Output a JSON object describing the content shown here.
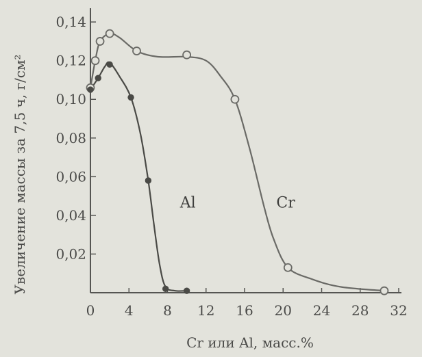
{
  "chart_data": {
    "type": "line",
    "title": "",
    "xlabel": "Cr или Al, масс.%",
    "ylabel": "Увеличение массы за 7,5 ч, г/см²",
    "xlim": [
      0,
      32
    ],
    "ylim": [
      0,
      0.145
    ],
    "x_ticks": [
      0,
      4,
      8,
      12,
      16,
      20,
      24,
      28,
      32
    ],
    "y_ticks": [
      0.02,
      0.04,
      0.06,
      0.08,
      0.1,
      0.12,
      0.14
    ],
    "x_tick_labels": [
      "0",
      "4",
      "8",
      "12",
      "16",
      "20",
      "24",
      "28",
      "32"
    ],
    "y_tick_labels": [
      "0,02",
      "0,04",
      "0,06",
      "0,08",
      "0,10",
      "0,12",
      "0,14"
    ],
    "grid": false,
    "legend": "none",
    "series": [
      {
        "name": "Cr",
        "marker": "open-circle",
        "color": "#6a6a66",
        "points": [
          {
            "x": 0.0,
            "y": 0.106
          },
          {
            "x": 0.5,
            "y": 0.12
          },
          {
            "x": 1.0,
            "y": 0.13
          },
          {
            "x": 2.0,
            "y": 0.134
          },
          {
            "x": 4.8,
            "y": 0.125
          },
          {
            "x": 10.0,
            "y": 0.123
          },
          {
            "x": 15.0,
            "y": 0.1
          },
          {
            "x": 20.5,
            "y": 0.013
          },
          {
            "x": 30.5,
            "y": 0.001
          }
        ],
        "curve": [
          [
            0.0,
            0.106
          ],
          [
            0.5,
            0.12
          ],
          [
            1.0,
            0.13
          ],
          [
            2.0,
            0.134
          ],
          [
            3.0,
            0.132
          ],
          [
            4.8,
            0.125
          ],
          [
            7.0,
            0.122
          ],
          [
            10.0,
            0.122
          ],
          [
            12.0,
            0.12
          ],
          [
            13.5,
            0.112
          ],
          [
            15.0,
            0.1
          ],
          [
            16.5,
            0.075
          ],
          [
            18.0,
            0.045
          ],
          [
            19.0,
            0.028
          ],
          [
            20.5,
            0.013
          ],
          [
            23.0,
            0.007
          ],
          [
            26.0,
            0.003
          ],
          [
            30.5,
            0.001
          ]
        ]
      },
      {
        "name": "Al",
        "marker": "filled-dot",
        "color": "#4a4a46",
        "points": [
          {
            "x": 0.0,
            "y": 0.105
          },
          {
            "x": 0.8,
            "y": 0.111
          },
          {
            "x": 2.0,
            "y": 0.118
          },
          {
            "x": 4.2,
            "y": 0.101
          },
          {
            "x": 6.0,
            "y": 0.058
          },
          {
            "x": 7.8,
            "y": 0.002
          },
          {
            "x": 10.0,
            "y": 0.001
          }
        ],
        "curve": [
          [
            0.0,
            0.105
          ],
          [
            0.8,
            0.111
          ],
          [
            1.5,
            0.117
          ],
          [
            2.0,
            0.119
          ],
          [
            3.0,
            0.112
          ],
          [
            4.2,
            0.101
          ],
          [
            5.2,
            0.082
          ],
          [
            6.0,
            0.058
          ],
          [
            6.6,
            0.035
          ],
          [
            7.2,
            0.014
          ],
          [
            7.8,
            0.003
          ],
          [
            8.8,
            0.001
          ],
          [
            10.0,
            0.001
          ]
        ]
      }
    ],
    "annotations": [
      {
        "text": "Al",
        "x": 9.3,
        "y": 0.044
      },
      {
        "text": "Cr",
        "x": 19.3,
        "y": 0.044
      }
    ]
  }
}
